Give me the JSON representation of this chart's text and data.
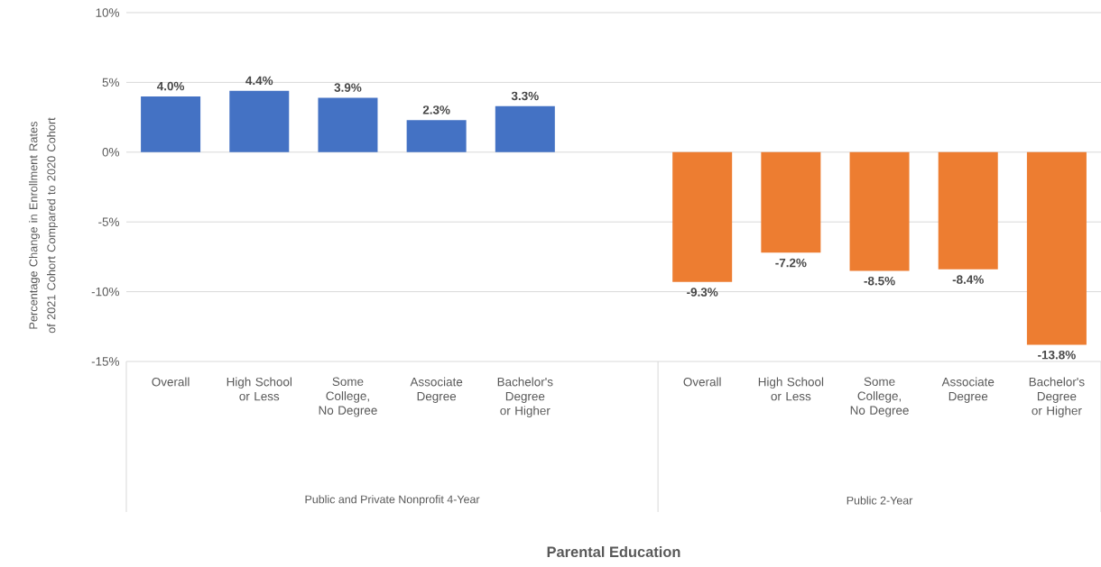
{
  "chart_data": {
    "type": "bar",
    "ylabel": "Percentage Change in Enrollment Rates of 2021 Cohort Compared to 2020 Cohort",
    "categories": [
      "Overall",
      "High School or Less",
      "Some College, No Degree",
      "Associate Degree",
      "Bachelor's Degree or Higher",
      null,
      "Overall",
      "High School or Less",
      "Some College, No Degree",
      "Associate Degree",
      "Bachelor's Degree or Higher"
    ],
    "series": [
      {
        "color": "#4472c4",
        "values": [
          4.0,
          4.4,
          3.9,
          2.3,
          3.3,
          null,
          null,
          null,
          null,
          null,
          null
        ],
        "value_labels": [
          "4.0%",
          "4.4%",
          "3.9%",
          "2.3%",
          "3.3%",
          null,
          null,
          null,
          null,
          null,
          null
        ]
      },
      {
        "color": "#ed7d31",
        "values": [
          null,
          null,
          null,
          null,
          null,
          null,
          -9.3,
          -7.2,
          -8.5,
          -8.4,
          -13.8
        ],
        "value_labels": [
          null,
          null,
          null,
          null,
          null,
          null,
          "-9.3%",
          "-7.2%",
          "-8.5%",
          "-8.4%",
          "-13.8%"
        ]
      }
    ],
    "annotations": [
      "Public and Private Nonprofit 4-Year",
      "Public 2-Year",
      "Parental Education"
    ],
    "ylim": [
      -15,
      10
    ],
    "yticks": [
      {
        "value": -15,
        "label": "-15%"
      },
      {
        "value": -10,
        "label": "-10%"
      },
      {
        "value": -5,
        "label": "-5%"
      },
      {
        "value": 0,
        "label": "0%"
      },
      {
        "value": 5,
        "label": "5%"
      },
      {
        "value": 10,
        "label": "10%"
      }
    ],
    "grid": "y"
  }
}
